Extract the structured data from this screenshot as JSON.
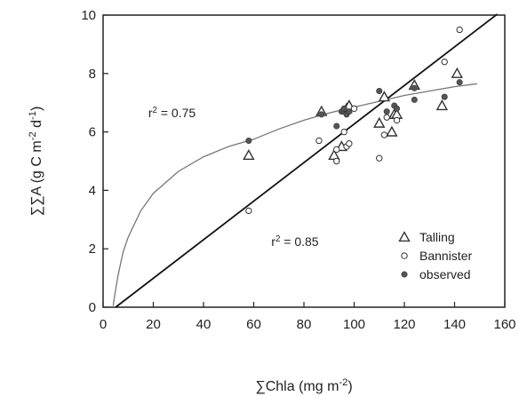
{
  "chart_data": {
    "type": "scatter",
    "xlabel": "∑Chla (mg m-2)",
    "ylabel": "∑∑A (g C m-2 d-1)",
    "xlim": [
      0,
      160
    ],
    "ylim": [
      0,
      10
    ],
    "xticks": [
      0,
      20,
      40,
      60,
      80,
      100,
      120,
      140,
      160
    ],
    "yticks": [
      0,
      2,
      4,
      6,
      8,
      10
    ],
    "grid": false,
    "legend_position": "lower-right",
    "series": [
      {
        "name": "Talling",
        "marker": "open-triangle",
        "points": [
          {
            "x": 58,
            "y": 5.2
          },
          {
            "x": 87,
            "y": 6.7
          },
          {
            "x": 92,
            "y": 5.2
          },
          {
            "x": 95,
            "y": 5.5
          },
          {
            "x": 97,
            "y": 6.8
          },
          {
            "x": 98,
            "y": 6.9
          },
          {
            "x": 110,
            "y": 6.3
          },
          {
            "x": 112,
            "y": 7.2
          },
          {
            "x": 115,
            "y": 6.0
          },
          {
            "x": 116,
            "y": 6.6
          },
          {
            "x": 117,
            "y": 6.6
          },
          {
            "x": 124,
            "y": 7.6
          },
          {
            "x": 135,
            "y": 6.9
          },
          {
            "x": 141,
            "y": 8.0
          }
        ]
      },
      {
        "name": "Bannister",
        "marker": "open-circle",
        "points": [
          {
            "x": 58,
            "y": 3.3
          },
          {
            "x": 86,
            "y": 5.7
          },
          {
            "x": 93,
            "y": 5.0
          },
          {
            "x": 93,
            "y": 5.4
          },
          {
            "x": 96,
            "y": 6.0
          },
          {
            "x": 97,
            "y": 5.5
          },
          {
            "x": 98,
            "y": 5.6
          },
          {
            "x": 100,
            "y": 6.8
          },
          {
            "x": 110,
            "y": 5.1
          },
          {
            "x": 112,
            "y": 5.9
          },
          {
            "x": 113,
            "y": 6.5
          },
          {
            "x": 117,
            "y": 6.4
          },
          {
            "x": 136,
            "y": 8.4
          },
          {
            "x": 142,
            "y": 9.5
          }
        ]
      },
      {
        "name": "observed",
        "marker": "filled-circle",
        "points": [
          {
            "x": 58,
            "y": 5.7
          },
          {
            "x": 87,
            "y": 6.6
          },
          {
            "x": 93,
            "y": 6.2
          },
          {
            "x": 95,
            "y": 6.7
          },
          {
            "x": 96,
            "y": 6.7
          },
          {
            "x": 96,
            "y": 6.8
          },
          {
            "x": 97,
            "y": 6.6
          },
          {
            "x": 98,
            "y": 6.7
          },
          {
            "x": 110,
            "y": 7.4
          },
          {
            "x": 113,
            "y": 6.7
          },
          {
            "x": 116,
            "y": 6.9
          },
          {
            "x": 117,
            "y": 6.8
          },
          {
            "x": 124,
            "y": 7.1
          },
          {
            "x": 124,
            "y": 7.5
          },
          {
            "x": 136,
            "y": 7.2
          },
          {
            "x": 142,
            "y": 7.7
          }
        ]
      }
    ],
    "fits": [
      {
        "kind": "saturating-curve",
        "annotation": "r2 = 0.75",
        "points": [
          [
            4,
            0.05
          ],
          [
            5,
            0.6
          ],
          [
            6,
            1.1
          ],
          [
            8,
            1.9
          ],
          [
            10,
            2.4
          ],
          [
            15,
            3.3
          ],
          [
            20,
            3.9
          ],
          [
            30,
            4.65
          ],
          [
            40,
            5.15
          ],
          [
            50,
            5.5
          ],
          [
            60,
            5.75
          ],
          [
            70,
            6.1
          ],
          [
            80,
            6.4
          ],
          [
            90,
            6.65
          ],
          [
            100,
            6.85
          ],
          [
            110,
            7.05
          ],
          [
            120,
            7.25
          ],
          [
            130,
            7.4
          ],
          [
            140,
            7.55
          ],
          [
            149,
            7.65
          ]
        ]
      },
      {
        "kind": "linear",
        "annotation": "r2 = 0.85",
        "slope": 0.066,
        "intercept": -0.33,
        "x_range": [
          5,
          157
        ]
      }
    ],
    "annotations": [
      {
        "text": "r2 = 0.75",
        "x": 18,
        "y": 6.5
      },
      {
        "text": "r2 = 0.85",
        "x": 67,
        "y": 2.1
      }
    ]
  },
  "colors": {
    "axis": "#222222",
    "marker": "#333333",
    "filled_marker": "#555555",
    "linear_fit": "#111111",
    "curve_fit": "#777777"
  }
}
